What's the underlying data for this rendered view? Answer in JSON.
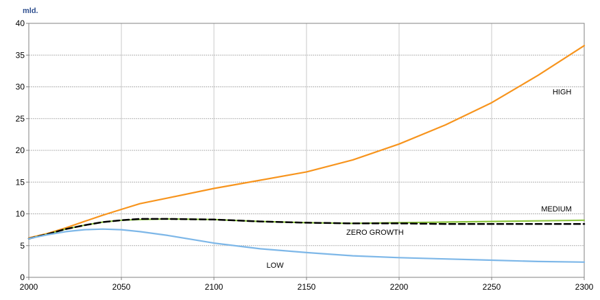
{
  "chart_data": {
    "type": "line",
    "unit_label": "mld.",
    "xlim": [
      2000,
      2300
    ],
    "ylim": [
      0,
      40
    ],
    "x_ticks": [
      2000,
      2050,
      2100,
      2150,
      2200,
      2250,
      2300
    ],
    "y_ticks": [
      0,
      5,
      10,
      15,
      20,
      25,
      30,
      35,
      40
    ],
    "grid": true,
    "legend": "inline labels",
    "series": [
      {
        "name": "HIGH",
        "color": "#f7941d",
        "dash": "solid",
        "x": [
          2000,
          2010,
          2020,
          2030,
          2040,
          2050,
          2060,
          2075,
          2100,
          2125,
          2150,
          2175,
          2200,
          2225,
          2250,
          2275,
          2300
        ],
        "values": [
          6.2,
          6.9,
          7.8,
          8.8,
          9.8,
          10.7,
          11.6,
          12.5,
          14.0,
          15.3,
          16.6,
          18.5,
          21.0,
          24.0,
          27.5,
          31.8,
          36.5
        ]
      },
      {
        "name": "MEDIUM",
        "color": "#8dc63f",
        "dash": "solid",
        "x": [
          2000,
          2010,
          2020,
          2030,
          2040,
          2050,
          2060,
          2075,
          2100,
          2125,
          2150,
          2175,
          2200,
          2225,
          2250,
          2275,
          2300
        ],
        "values": [
          6.1,
          6.8,
          7.6,
          8.2,
          8.7,
          9.0,
          9.1,
          9.2,
          9.1,
          8.8,
          8.6,
          8.5,
          8.6,
          8.7,
          8.8,
          8.9,
          9.0
        ]
      },
      {
        "name": "ZERO GROWTH",
        "color": "#000000",
        "dash": "dashed",
        "x": [
          2000,
          2010,
          2020,
          2030,
          2040,
          2050,
          2060,
          2075,
          2100,
          2125,
          2150,
          2175,
          2200,
          2225,
          2250,
          2275,
          2300
        ],
        "values": [
          6.1,
          6.8,
          7.6,
          8.2,
          8.7,
          9.0,
          9.2,
          9.2,
          9.1,
          8.8,
          8.6,
          8.5,
          8.5,
          8.4,
          8.4,
          8.4,
          8.4
        ]
      },
      {
        "name": "LOW",
        "color": "#7db7e8",
        "dash": "solid",
        "x": [
          2000,
          2010,
          2020,
          2030,
          2040,
          2050,
          2060,
          2075,
          2100,
          2125,
          2150,
          2175,
          2200,
          2225,
          2250,
          2275,
          2300
        ],
        "values": [
          6.1,
          6.7,
          7.2,
          7.5,
          7.6,
          7.5,
          7.2,
          6.6,
          5.4,
          4.5,
          3.9,
          3.4,
          3.1,
          2.9,
          2.7,
          2.5,
          2.4
        ]
      }
    ],
    "series_label_anchors": [
      {
        "name": "HIGH",
        "x": 2288,
        "y": 28.8
      },
      {
        "name": "MEDIUM",
        "x": 2285,
        "y": 10.4
      },
      {
        "name": "ZERO GROWTH",
        "x": 2187,
        "y": 6.7
      },
      {
        "name": "LOW",
        "x": 2133,
        "y": 1.5
      }
    ]
  }
}
